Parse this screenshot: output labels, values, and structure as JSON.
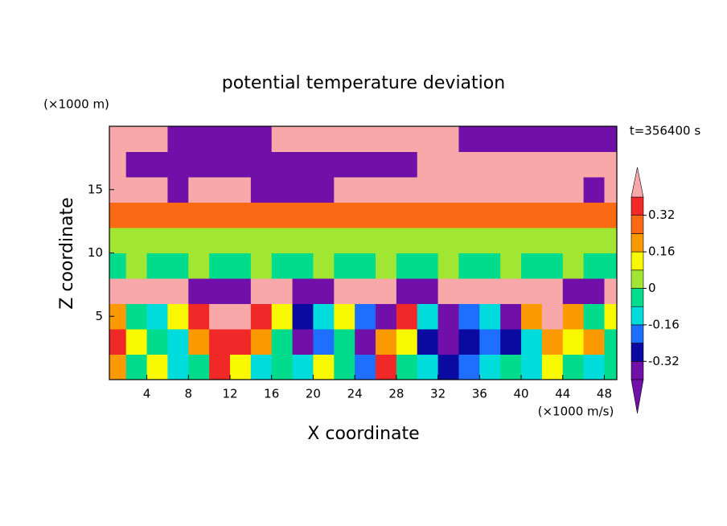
{
  "chart_data": {
    "type": "contour",
    "title": "potential temperature deviation",
    "x_label": "X coordinate",
    "y_label": "Z coordinate",
    "x_unit": "(×1000 m/s)",
    "y_unit": "(×1000 m)",
    "time_label": "t=356400 s",
    "xlim": [
      0.4,
      49.2
    ],
    "ylim": [
      0,
      20
    ],
    "xticks": [
      4,
      8,
      12,
      16,
      20,
      24,
      28,
      32,
      36,
      40,
      44,
      48
    ],
    "yticks": [
      5,
      10,
      15
    ],
    "x": [
      1,
      3,
      5,
      7,
      9,
      11,
      13,
      15,
      17,
      19,
      21,
      23,
      25,
      27,
      29,
      31,
      33,
      35,
      37,
      39,
      41,
      43,
      45,
      47,
      49
    ],
    "z": [
      1,
      3,
      5,
      7,
      9,
      11,
      13,
      15,
      17,
      19
    ],
    "values": [
      [
        0.2,
        -0.04,
        0.12,
        -0.12,
        -0.04,
        0.36,
        0.12,
        -0.12,
        -0.04,
        -0.12,
        0.12,
        -0.04,
        -0.2,
        0.36,
        -0.04,
        -0.12,
        -0.28,
        -0.2,
        -0.12,
        -0.04,
        -0.12,
        0.12,
        -0.04,
        -0.12,
        -0.04
      ],
      [
        0.36,
        0.12,
        -0.04,
        -0.12,
        0.2,
        0.36,
        0.36,
        0.2,
        -0.04,
        -0.36,
        -0.2,
        -0.04,
        -0.36,
        0.2,
        0.12,
        -0.28,
        -0.36,
        -0.28,
        -0.2,
        -0.28,
        -0.12,
        0.2,
        0.12,
        0.2,
        -0.04
      ],
      [
        0.2,
        -0.04,
        -0.12,
        0.12,
        0.36,
        0.5,
        0.5,
        0.36,
        0.12,
        -0.28,
        -0.12,
        0.12,
        -0.2,
        -0.36,
        0.36,
        -0.12,
        -0.36,
        -0.2,
        -0.12,
        -0.36,
        0.2,
        0.5,
        0.2,
        -0.04,
        0.12
      ],
      [
        0.5,
        0.5,
        0.5,
        0.5,
        -0.5,
        -0.5,
        -0.5,
        0.5,
        0.5,
        -0.5,
        -0.5,
        0.5,
        0.5,
        0.5,
        -0.5,
        -0.5,
        0.5,
        0.5,
        0.5,
        0.5,
        0.5,
        0.5,
        -0.5,
        -0.5,
        0.5
      ],
      [
        -0.04,
        0.04,
        -0.04,
        -0.04,
        0.04,
        -0.04,
        -0.04,
        0.04,
        -0.04,
        -0.04,
        0.04,
        -0.04,
        -0.04,
        0.04,
        -0.04,
        -0.04,
        0.04,
        -0.04,
        -0.04,
        0.04,
        -0.04,
        -0.04,
        0.04,
        -0.04,
        -0.04
      ],
      [
        0.04,
        0.04,
        0.04,
        0.04,
        0.04,
        0.04,
        0.04,
        0.04,
        0.04,
        0.04,
        0.04,
        0.04,
        0.04,
        0.04,
        0.04,
        0.04,
        0.04,
        0.04,
        0.04,
        0.04,
        0.04,
        0.04,
        0.04,
        0.04,
        0.04
      ],
      [
        0.28,
        0.28,
        0.28,
        0.28,
        0.28,
        0.28,
        0.28,
        0.28,
        0.28,
        0.28,
        0.28,
        0.28,
        0.28,
        0.28,
        0.28,
        0.28,
        0.28,
        0.28,
        0.28,
        0.28,
        0.28,
        0.28,
        0.28,
        0.28,
        0.28
      ],
      [
        0.5,
        0.5,
        0.5,
        -0.5,
        0.5,
        0.5,
        0.5,
        -0.5,
        -0.5,
        -0.5,
        -0.5,
        0.5,
        0.5,
        0.5,
        0.5,
        0.5,
        0.5,
        0.5,
        0.5,
        0.5,
        0.5,
        0.5,
        0.5,
        -0.5,
        0.5
      ],
      [
        0.5,
        -0.5,
        -0.5,
        -0.5,
        -0.5,
        -0.5,
        -0.5,
        -0.5,
        -0.5,
        -0.5,
        -0.5,
        -0.5,
        -0.5,
        -0.5,
        -0.5,
        0.5,
        0.5,
        0.5,
        0.5,
        0.5,
        0.5,
        0.5,
        0.5,
        0.5,
        0.5
      ],
      [
        0.5,
        0.5,
        0.5,
        -0.5,
        -0.5,
        -0.5,
        -0.5,
        -0.5,
        0.5,
        0.5,
        0.5,
        0.5,
        0.5,
        0.5,
        0.5,
        0.5,
        0.5,
        -0.5,
        -0.5,
        -0.5,
        -0.5,
        -0.5,
        -0.5,
        -0.5,
        -0.5
      ]
    ],
    "levels": [
      -0.4,
      -0.32,
      -0.24,
      -0.16,
      -0.08,
      0,
      0.08,
      0.16,
      0.24,
      0.32,
      0.4
    ],
    "colors": [
      "#7010a8",
      "#7010a8",
      "#0a0aa0",
      "#1e6eff",
      "#00dcdc",
      "#00dc8c",
      "#a0e632",
      "#f8f800",
      "#fa9a00",
      "#fa6a14",
      "#f02828",
      "#f8a8a8"
    ],
    "cbar_ticks": [
      0.32,
      0.16,
      0,
      -0.16,
      -0.32
    ]
  }
}
